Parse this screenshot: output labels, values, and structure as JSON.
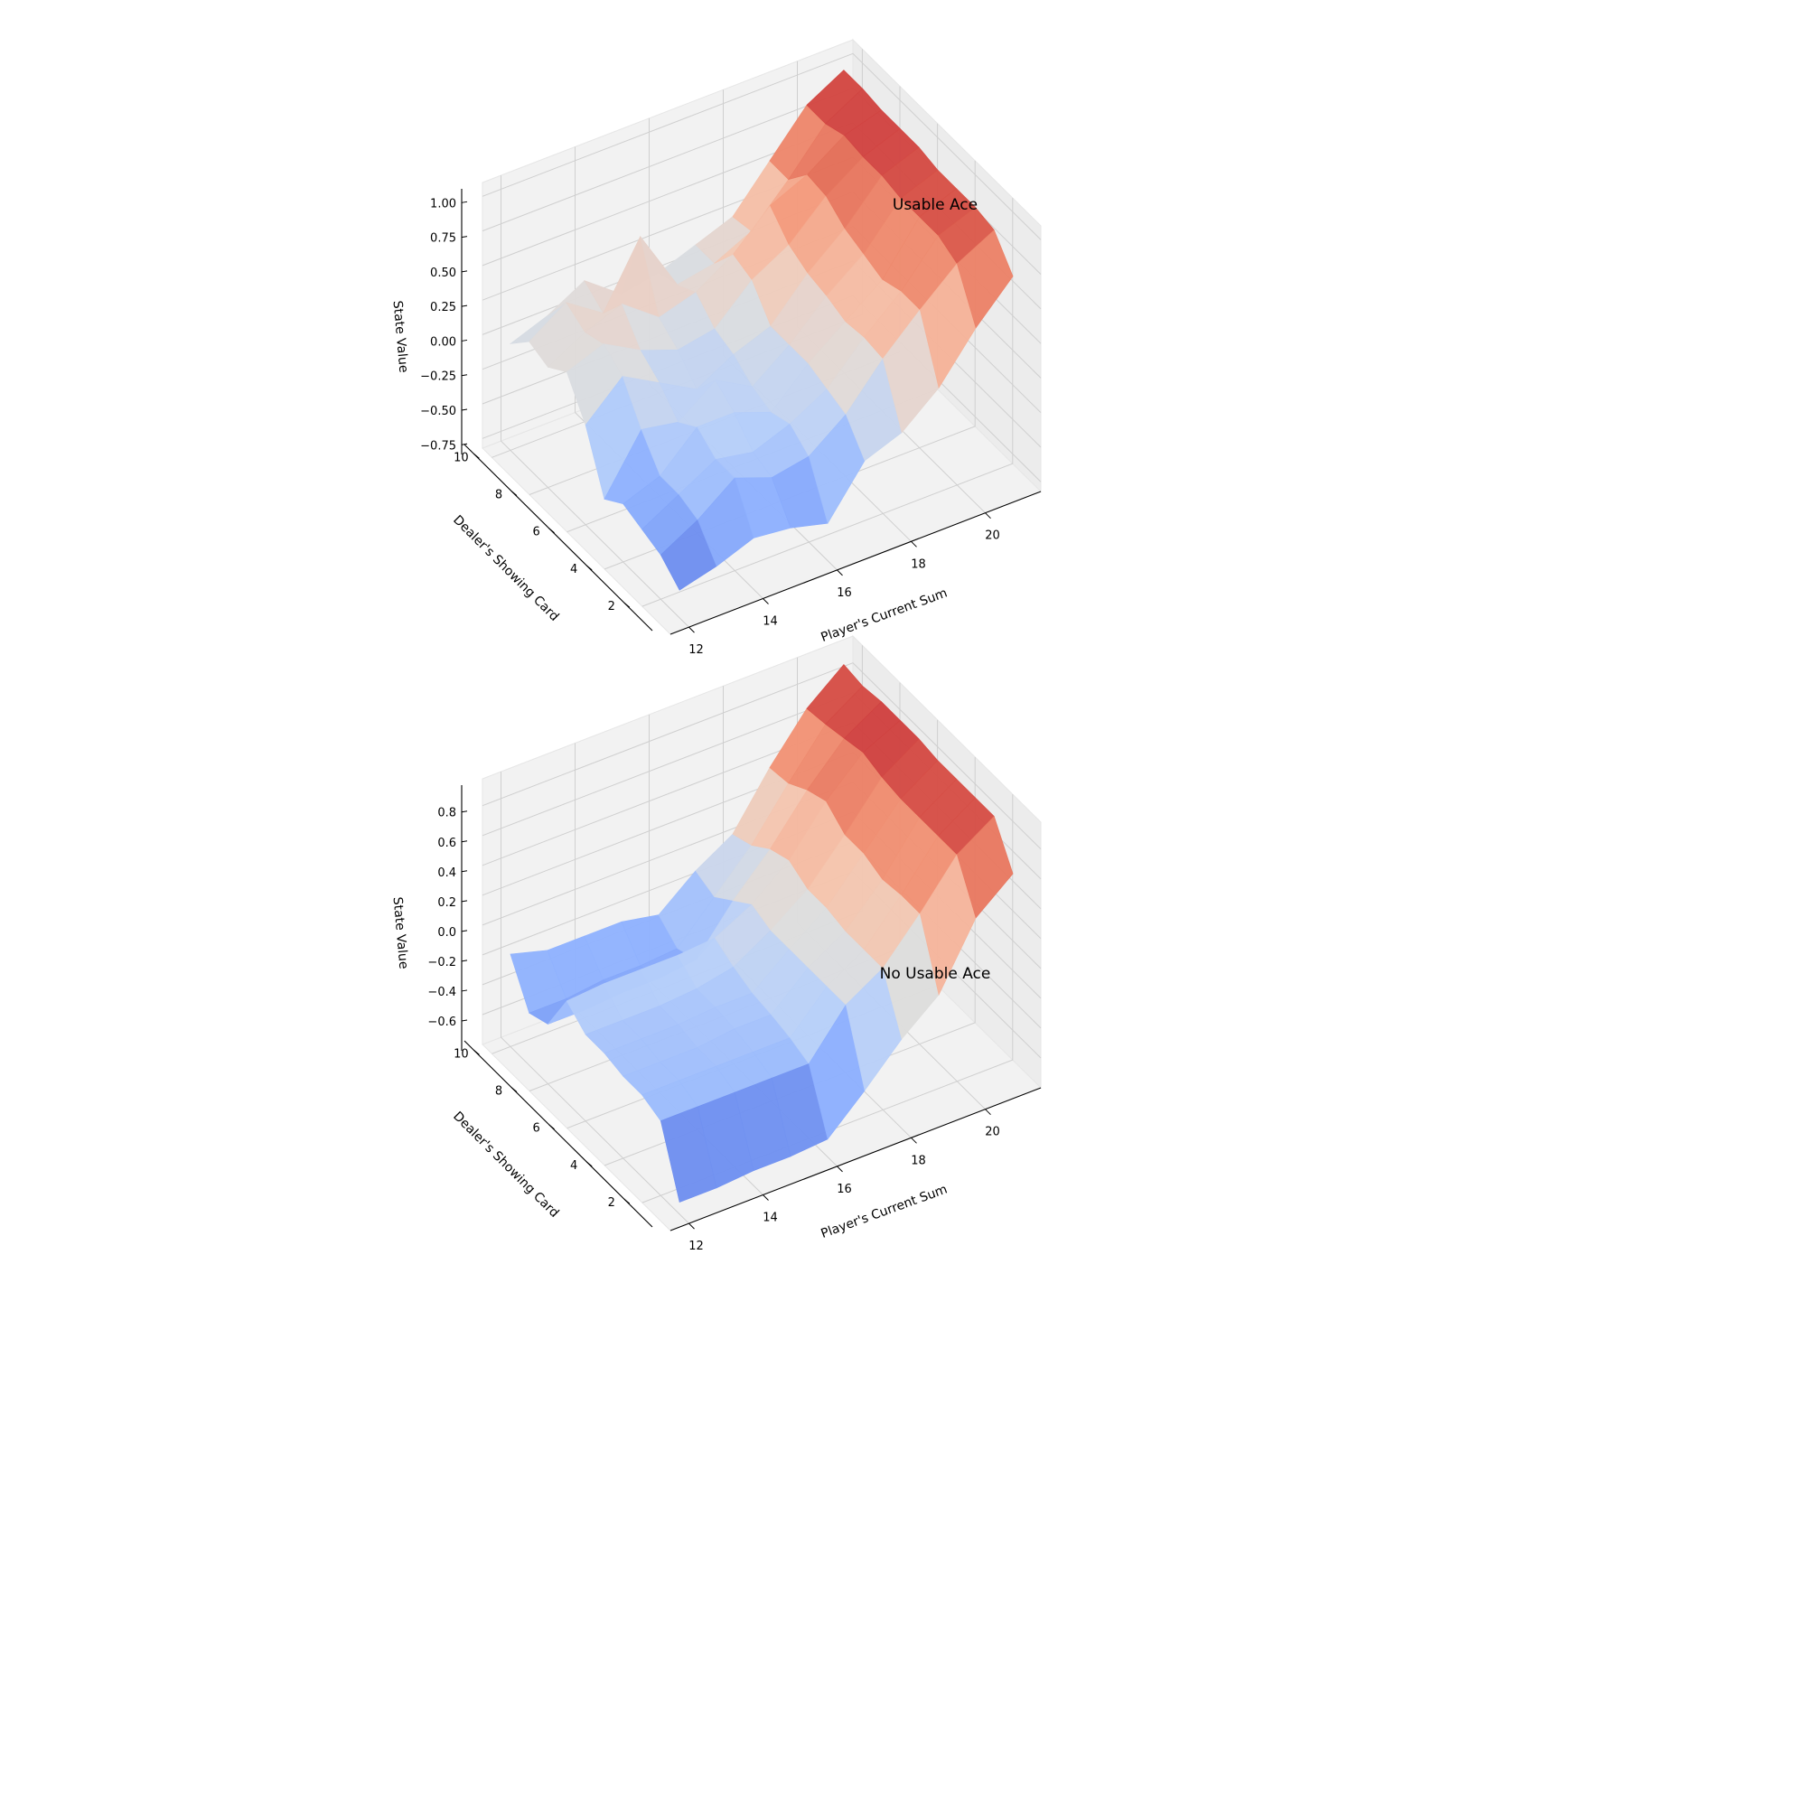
{
  "chart_data": [
    {
      "type": "surface",
      "title": "Usable Ace",
      "xlabel": "Player's Current Sum",
      "ylabel": "Dealer's Showing Card",
      "zlabel": "State Value",
      "x": [
        12,
        13,
        14,
        15,
        16,
        17,
        18,
        19,
        20,
        21
      ],
      "y": [
        1,
        2,
        3,
        4,
        5,
        6,
        7,
        8,
        9,
        10
      ],
      "xlim": [
        11.5,
        21.5
      ],
      "ylim": [
        0.5,
        10.5
      ],
      "zlim": [
        -0.82,
        1.1
      ],
      "xticks": [
        12,
        14,
        16,
        18,
        20
      ],
      "yticks": [
        2,
        4,
        6,
        8,
        10
      ],
      "zticks": [
        -0.75,
        -0.5,
        -0.25,
        0.0,
        0.25,
        0.5,
        0.75,
        1.0
      ],
      "zticklabels": [
        "−0.75",
        "−0.50",
        "−0.25",
        "0.00",
        "0.25",
        "0.50",
        "0.75",
        "1.00"
      ],
      "grid": true,
      "colormap": "coolwarm",
      "z": [
        [
          -0.62,
          -0.55,
          -0.45,
          -0.48,
          -0.55,
          -0.2,
          -0.1,
          0.12,
          0.45,
          0.72
        ],
        [
          -0.5,
          -0.35,
          -0.15,
          -0.25,
          -0.2,
          0.0,
          0.3,
          0.55,
          0.78,
          0.92
        ],
        [
          -0.45,
          -0.3,
          -0.15,
          -0.2,
          -0.1,
          0.05,
          0.32,
          0.55,
          0.85,
          0.95
        ],
        [
          -0.4,
          -0.3,
          -0.05,
          -0.05,
          -0.15,
          0.1,
          0.3,
          0.5,
          0.85,
          0.95
        ],
        [
          -0.5,
          -0.1,
          -0.15,
          0.05,
          -0.1,
          0.1,
          0.35,
          0.55,
          0.85,
          0.95
        ],
        [
          -0.1,
          0.15,
          0.0,
          -0.15,
          0.0,
          0.1,
          0.38,
          0.6,
          0.88,
          0.98
        ],
        [
          0.15,
          0.25,
          0.1,
          0.0,
          0.05,
          0.3,
          0.45,
          0.7,
          0.88,
          0.98
        ],
        [
          0.05,
          0.2,
          0.3,
          0.1,
          0.18,
          0.35,
          0.6,
          0.72,
          0.9,
          0.98
        ],
        [
          0.1,
          0.28,
          0.1,
          0.55,
          0.1,
          0.15,
          0.28,
          0.55,
          0.85,
          1.0
        ],
        [
          -0.05,
          0.05,
          0.2,
          0.0,
          0.05,
          0.15,
          0.25,
          0.55,
          0.85,
          1.0
        ]
      ]
    },
    {
      "type": "surface",
      "title": "No Usable Ace",
      "xlabel": "Player's Current Sum",
      "ylabel": "Dealer's Showing Card",
      "zlabel": "State Value",
      "x": [
        12,
        13,
        14,
        15,
        16,
        17,
        18,
        19,
        20,
        21
      ],
      "y": [
        1,
        2,
        3,
        4,
        5,
        6,
        7,
        8,
        9,
        10
      ],
      "xlim": [
        11.5,
        21.5
      ],
      "ylim": [
        0.5,
        10.5
      ],
      "zlim": [
        -0.8,
        0.98
      ],
      "xticks": [
        12,
        14,
        16,
        18,
        20
      ],
      "yticks": [
        2,
        4,
        6,
        8,
        10
      ],
      "zticks": [
        -0.6,
        -0.4,
        -0.2,
        0.0,
        0.2,
        0.4,
        0.6,
        0.8
      ],
      "zticklabels": [
        "−0.6",
        "−0.4",
        "−0.2",
        "0.0",
        "0.2",
        "0.4",
        "0.6",
        "0.8"
      ],
      "grid": true,
      "colormap": "coolwarm",
      "z": [
        [
          -0.72,
          -0.72,
          -0.7,
          -0.7,
          -0.68,
          -0.45,
          -0.2,
          0.0,
          0.42,
          0.62
        ],
        [
          -0.3,
          -0.3,
          -0.3,
          -0.3,
          -0.3,
          0.0,
          0.15,
          0.42,
          0.72,
          0.88
        ],
        [
          -0.25,
          -0.25,
          -0.25,
          -0.25,
          -0.25,
          0.0,
          0.15,
          0.42,
          0.72,
          0.88
        ],
        [
          -0.25,
          -0.25,
          -0.25,
          -0.22,
          -0.22,
          0.0,
          0.15,
          0.4,
          0.72,
          0.88
        ],
        [
          -0.22,
          -0.22,
          -0.22,
          -0.2,
          -0.2,
          0.0,
          0.18,
          0.45,
          0.72,
          0.88
        ],
        [
          -0.22,
          -0.22,
          -0.22,
          -0.2,
          -0.15,
          0.0,
          0.18,
          0.45,
          0.74,
          0.9
        ],
        [
          -0.12,
          -0.1,
          -0.1,
          -0.1,
          -0.08,
          0.05,
          0.25,
          0.55,
          0.78,
          0.9
        ],
        [
          -0.4,
          -0.4,
          -0.38,
          -0.38,
          -0.35,
          -0.05,
          0.2,
          0.5,
          0.75,
          0.9
        ],
        [
          -0.45,
          -0.45,
          -0.42,
          -0.42,
          -0.4,
          -0.15,
          0.1,
          0.42,
          0.72,
          0.88
        ],
        [
          -0.18,
          -0.25,
          -0.25,
          -0.25,
          -0.3,
          -0.1,
          0.05,
          0.4,
          0.7,
          0.9
        ]
      ]
    }
  ]
}
